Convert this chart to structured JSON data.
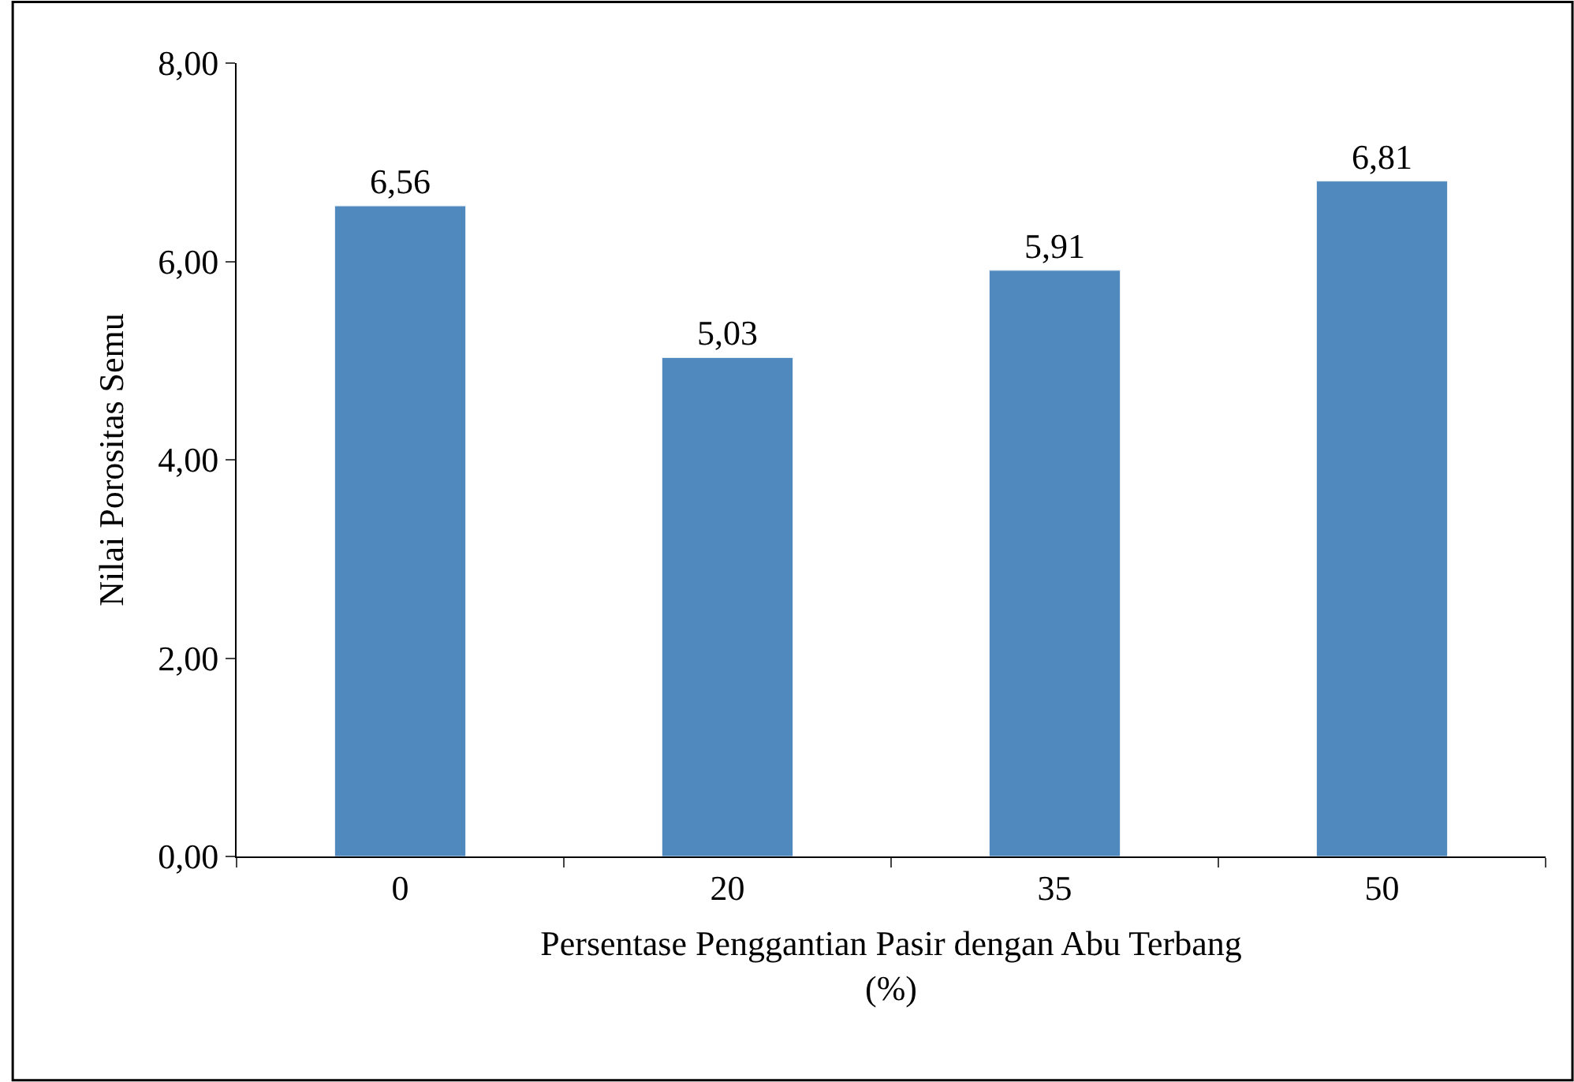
{
  "chart_data": {
    "type": "bar",
    "xlabel": "Persentase Penggantian Pasir dengan Abu Terbang\n(%)",
    "ylabel": "Nilai Porositas Semu",
    "categories": [
      "0",
      "20",
      "35",
      "50"
    ],
    "values": [
      6.56,
      5.03,
      5.91,
      6.81
    ],
    "value_labels": [
      "6,56",
      "5,03",
      "5,91",
      "6,81"
    ],
    "color": "#4f89bd",
    "ylim": [
      0,
      8
    ],
    "yticks": [
      {
        "value": 0,
        "label": "0,00"
      },
      {
        "value": 2,
        "label": "2,00"
      },
      {
        "value": 4,
        "label": "4,00"
      },
      {
        "value": 6,
        "label": "6,00"
      },
      {
        "value": 8,
        "label": "8,00"
      }
    ],
    "tick_labels": "xy"
  }
}
